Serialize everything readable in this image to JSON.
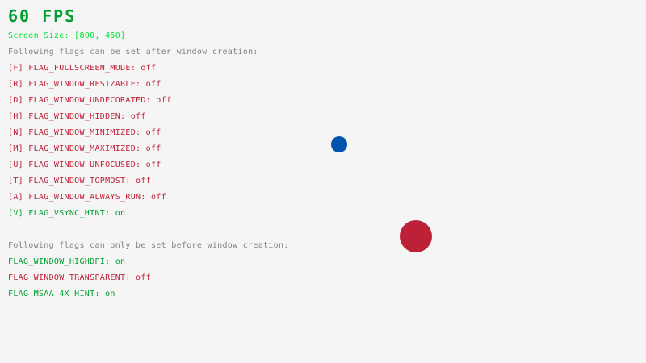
{
  "fps": "60 FPS",
  "screen_size": "Screen Size: [800, 450]",
  "runtime_heading": "Following flags can be set after window creation:",
  "runtime_flags": [
    {
      "label": "[F] FLAG_FULLSCREEN_MODE: ",
      "state": "off"
    },
    {
      "label": "[R] FLAG_WINDOW_RESIZABLE: ",
      "state": "off"
    },
    {
      "label": "[D] FLAG_WINDOW_UNDECORATED: ",
      "state": "off"
    },
    {
      "label": "[H] FLAG_WINDOW_HIDDEN: ",
      "state": "off"
    },
    {
      "label": "[N] FLAG_WINDOW_MINIMIZED: ",
      "state": "off"
    },
    {
      "label": "[M] FLAG_WINDOW_MAXIMIZED: ",
      "state": "off"
    },
    {
      "label": "[U] FLAG_WINDOW_UNFOCUSED: ",
      "state": "off"
    },
    {
      "label": "[T] FLAG_WINDOW_TOPMOST: ",
      "state": "off"
    },
    {
      "label": "[A] FLAG_WINDOW_ALWAYS_RUN: ",
      "state": "off"
    },
    {
      "label": "[V] FLAG_VSYNC_HINT: ",
      "state": "on"
    }
  ],
  "init_heading": "Following flags can only be set before window creation:",
  "init_flags": [
    {
      "label": "FLAG_WINDOW_HIGHDPI: ",
      "state": "on"
    },
    {
      "label": "FLAG_WINDOW_TRANSPARENT: ",
      "state": "off"
    },
    {
      "label": "FLAG_MSAA_4X_HINT: ",
      "state": "on"
    }
  ],
  "colors": {
    "on": "#009e2f",
    "off": "#be2137",
    "background": "#f5f5f5",
    "small_ball": "#0052ac",
    "big_ball": "#be2137"
  }
}
